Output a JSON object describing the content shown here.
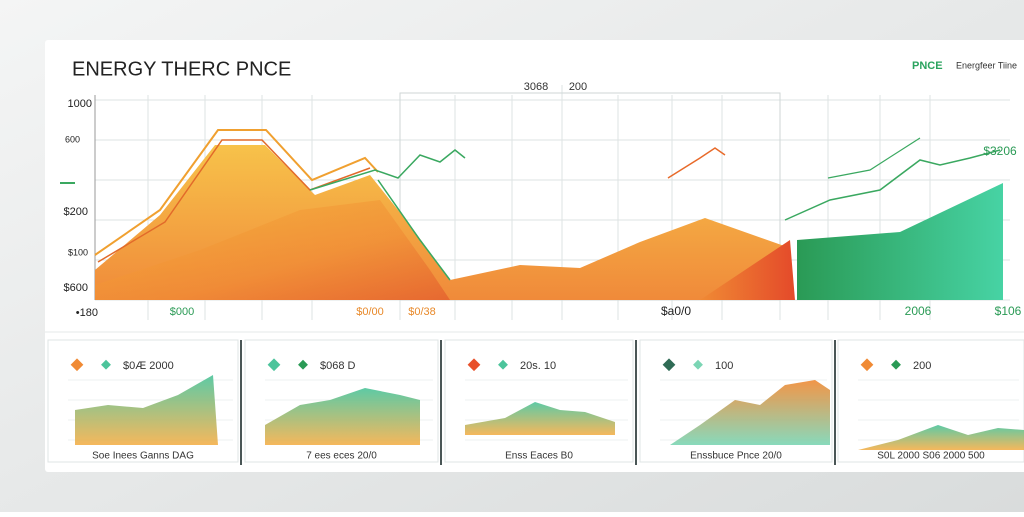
{
  "header": {
    "title": "ENERGY THERC PNCE",
    "legend_label": "PNCE",
    "legend_text": "Energfeer Tiine"
  },
  "main_chart": {
    "top_labels": [
      "3068",
      "200"
    ],
    "y_labels": [
      "1000",
      "600",
      "$200",
      "$100",
      "$600",
      "•180"
    ],
    "x_labels": [
      "$000",
      "$0/00",
      "$0/38",
      "$a0/0",
      "2006",
      "$106"
    ],
    "series_label": "$3206"
  },
  "panels": [
    {
      "label": "$0Æ 2000",
      "footer": "Soe Inees Ganns DAG"
    },
    {
      "label": "$068 D",
      "footer": "7 ees eces 20/0"
    },
    {
      "label": "20s. 10",
      "footer": "Enss Eaces B0"
    },
    {
      "label": "100",
      "footer": "Enssbuce Pnce 20/0"
    },
    {
      "label": "200",
      "footer": "S0L 2000 S06 2000 500"
    }
  ]
}
